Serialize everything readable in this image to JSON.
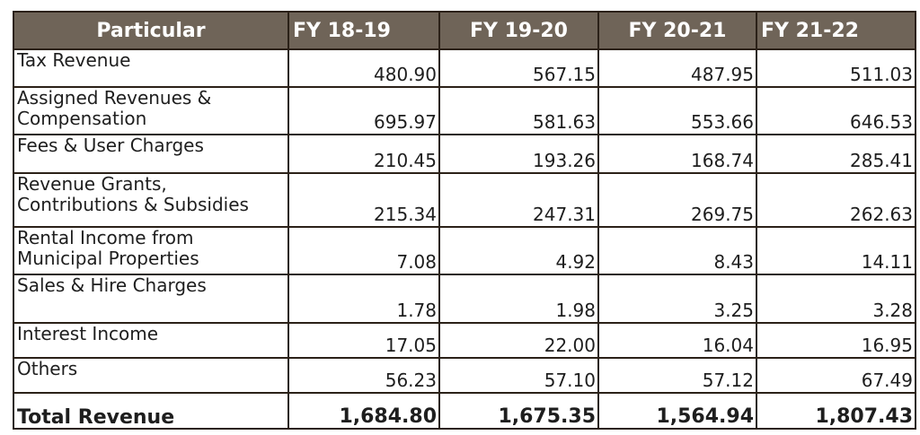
{
  "table": {
    "columns": [
      "Particular",
      "FY 18-19",
      "FY 19-20",
      "FY 20-21",
      "FY 21-22"
    ],
    "rows": [
      {
        "label": "Tax Revenue",
        "values": [
          "480.90",
          "567.15",
          "487.95",
          "511.03"
        ]
      },
      {
        "label": "Assigned Revenues & Compensation",
        "values": [
          "695.97",
          "581.63",
          "553.66",
          "646.53"
        ]
      },
      {
        "label": "Fees & User Charges",
        "values": [
          "210.45",
          "193.26",
          "168.74",
          "285.41"
        ]
      },
      {
        "label": "Revenue Grants, Contributions & Subsidies",
        "values": [
          "215.34",
          "247.31",
          "269.75",
          "262.63"
        ]
      },
      {
        "label": "Rental Income from Municipal Properties",
        "values": [
          "7.08",
          "4.92",
          "8.43",
          "14.11"
        ]
      },
      {
        "label": "Sales & Hire Charges",
        "values": [
          "1.78",
          "1.98",
          "3.25",
          "3.28"
        ]
      },
      {
        "label": "Interest Income",
        "values": [
          "17.05",
          "22.00",
          "16.04",
          "16.95"
        ]
      },
      {
        "label": "Others",
        "values": [
          "56.23",
          "57.10",
          "57.12",
          "67.49"
        ]
      }
    ],
    "total": {
      "label": "Total Revenue",
      "values": [
        "1,684.80",
        "1,675.35",
        "1,564.94",
        "1,807.43"
      ]
    }
  },
  "colors": {
    "header_bg": "#6f6458",
    "header_text": "#ffffff",
    "border": "#2b2118"
  }
}
